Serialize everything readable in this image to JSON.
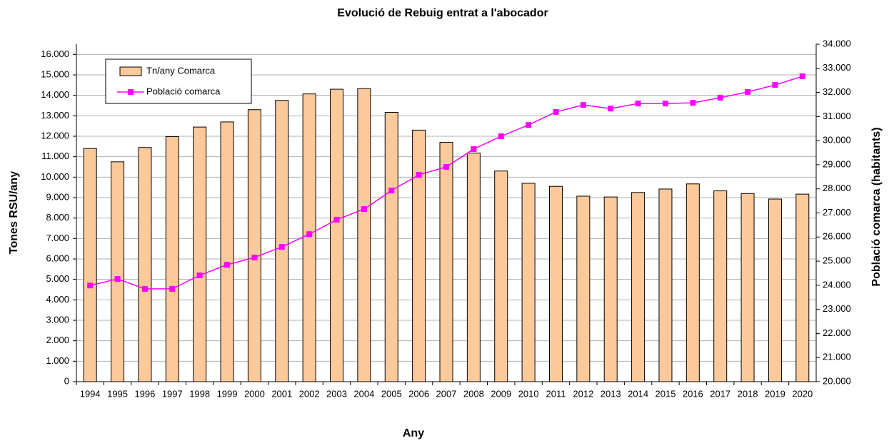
{
  "chart_data": {
    "type": "bar",
    "title": "Evolució de Rebuig entrat a l'abocador",
    "x_label": "Any",
    "y_label": "Tones RSU/any",
    "y2_label": "Població comarca (habitants)",
    "categories": [
      "1994",
      "1995",
      "1996",
      "1997",
      "1998",
      "1999",
      "2000",
      "2001",
      "2002",
      "2003",
      "2004",
      "2005",
      "2006",
      "2007",
      "2008",
      "2009",
      "2010",
      "2011",
      "2012",
      "2013",
      "2014",
      "2015",
      "2016",
      "2017",
      "2018",
      "2019",
      "2020"
    ],
    "series": [
      {
        "name": "Tn/any Comarca",
        "type": "bar",
        "color": "#fcc99b",
        "axis": "y",
        "values": [
          11400,
          10750,
          11450,
          11980,
          12450,
          12700,
          13300,
          13750,
          14070,
          14300,
          14330,
          13170,
          12300,
          11700,
          11180,
          10300,
          9700,
          9550,
          9070,
          9030,
          9250,
          9420,
          9670,
          9330,
          9200,
          8930,
          9170
        ]
      },
      {
        "name": "Població comarca",
        "type": "line",
        "color": "#ff00ff",
        "axis": "y2",
        "values": [
          23990,
          24260,
          23850,
          23850,
          24410,
          24850,
          25150,
          25590,
          26120,
          26720,
          27160,
          27930,
          28580,
          28910,
          29650,
          30180,
          30650,
          31190,
          31480,
          31330,
          31540,
          31540,
          31570,
          31780,
          32020,
          32310,
          32670
        ]
      }
    ],
    "ylim": [
      0,
      16500
    ],
    "yticks": [
      0,
      {
        "value": 1000,
        "label": "1.000"
      },
      {
        "value": 2000,
        "label": "2.000"
      },
      {
        "value": 3000,
        "label": "3.000"
      },
      {
        "value": 4000,
        "label": "4.000"
      },
      {
        "value": 5000,
        "label": "5.000"
      },
      {
        "value": 6000,
        "label": "6.000"
      },
      {
        "value": 7000,
        "label": "7.000"
      },
      {
        "value": 8000,
        "label": "8.000"
      },
      {
        "value": 9000,
        "label": "9.000"
      },
      {
        "value": 10000,
        "label": "10.000"
      },
      {
        "value": 11000,
        "label": "11.000"
      },
      {
        "value": 12000,
        "label": "12.000"
      },
      {
        "value": 13000,
        "label": "13.000"
      },
      {
        "value": 14000,
        "label": "14.000"
      },
      {
        "value": 15000,
        "label": "15.000"
      },
      {
        "value": 16000,
        "label": "16.000"
      }
    ],
    "y2lim": [
      20000,
      34000
    ],
    "y2ticks": [
      {
        "value": 20000,
        "label": "20.000"
      },
      {
        "value": 21000,
        "label": "21.000"
      },
      {
        "value": 22000,
        "label": "22.000"
      },
      {
        "value": 23000,
        "label": "23.000"
      },
      {
        "value": 24000,
        "label": "24.000"
      },
      {
        "value": 25000,
        "label": "25.000"
      },
      {
        "value": 26000,
        "label": "26.000"
      },
      {
        "value": 27000,
        "label": "27.000"
      },
      {
        "value": 28000,
        "label": "28.000"
      },
      {
        "value": 29000,
        "label": "29.000"
      },
      {
        "value": 30000,
        "label": "30.000"
      },
      {
        "value": 31000,
        "label": "31.000"
      },
      {
        "value": 32000,
        "label": "32.000"
      },
      {
        "value": 33000,
        "label": "33.000"
      },
      {
        "value": 34000,
        "label": "34.000"
      }
    ],
    "grid": true,
    "legend": "upper left"
  }
}
